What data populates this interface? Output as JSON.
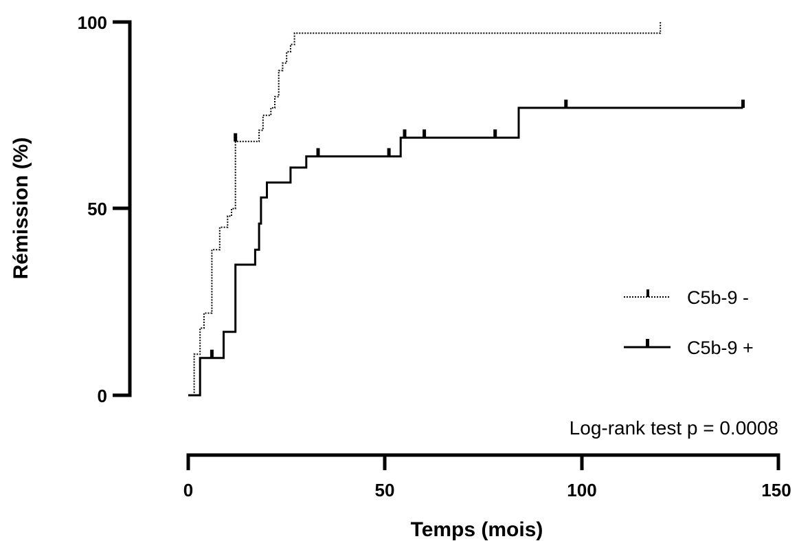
{
  "chart_data": {
    "type": "line",
    "subtype": "kaplan-meier",
    "title": "",
    "xlabel": "Temps (mois)",
    "ylabel": "Rémission (%)",
    "xlim": [
      0,
      150
    ],
    "ylim": [
      0,
      100
    ],
    "x_ticks": [
      "0",
      "50",
      "100",
      "150"
    ],
    "y_ticks": [
      "0",
      "50",
      "100"
    ],
    "grid": false,
    "legend_position": "right",
    "annotation": "Log-rank test p = 0.0008",
    "series": [
      {
        "name": "C5b-9 -",
        "style": "dotted",
        "color": "#000000",
        "steps": [
          [
            0,
            0
          ],
          [
            1.5,
            0
          ],
          [
            1.5,
            11
          ],
          [
            3,
            11
          ],
          [
            3,
            18
          ],
          [
            4,
            18
          ],
          [
            4,
            22
          ],
          [
            6,
            22
          ],
          [
            6,
            39
          ],
          [
            8,
            39
          ],
          [
            8,
            45
          ],
          [
            10,
            45
          ],
          [
            10,
            48
          ],
          [
            11,
            48
          ],
          [
            11,
            50
          ],
          [
            12,
            50
          ],
          [
            12,
            68
          ],
          [
            18,
            68
          ],
          [
            18,
            71
          ],
          [
            19,
            71
          ],
          [
            19,
            75
          ],
          [
            21,
            75
          ],
          [
            21,
            77
          ],
          [
            22,
            77
          ],
          [
            22,
            80
          ],
          [
            23,
            80
          ],
          [
            23,
            87
          ],
          [
            24,
            87
          ],
          [
            24,
            89
          ],
          [
            25,
            89
          ],
          [
            25,
            92
          ],
          [
            26,
            92
          ],
          [
            26,
            94
          ],
          [
            27,
            94
          ],
          [
            27,
            97
          ],
          [
            120,
            97
          ],
          [
            120,
            100
          ]
        ],
        "censored": [
          [
            12,
            68
          ]
        ]
      },
      {
        "name": "C5b-9 +",
        "style": "solid",
        "color": "#000000",
        "steps": [
          [
            0,
            0
          ],
          [
            3,
            0
          ],
          [
            3,
            10
          ],
          [
            9,
            10
          ],
          [
            9,
            17
          ],
          [
            12,
            17
          ],
          [
            12,
            35
          ],
          [
            17,
            35
          ],
          [
            17,
            39
          ],
          [
            18,
            39
          ],
          [
            18,
            46
          ],
          [
            18.5,
            46
          ],
          [
            18.5,
            53
          ],
          [
            20,
            53
          ],
          [
            20,
            57
          ],
          [
            26,
            57
          ],
          [
            26,
            61
          ],
          [
            30,
            61
          ],
          [
            30,
            64
          ],
          [
            54,
            64
          ],
          [
            54,
            69
          ],
          [
            84,
            69
          ],
          [
            84,
            77
          ],
          [
            141,
            77
          ]
        ],
        "censored": [
          [
            6,
            10
          ],
          [
            33,
            64
          ],
          [
            51,
            64
          ],
          [
            55,
            69
          ],
          [
            60,
            69
          ],
          [
            78,
            69
          ],
          [
            96,
            77
          ],
          [
            141,
            77
          ]
        ]
      }
    ]
  }
}
